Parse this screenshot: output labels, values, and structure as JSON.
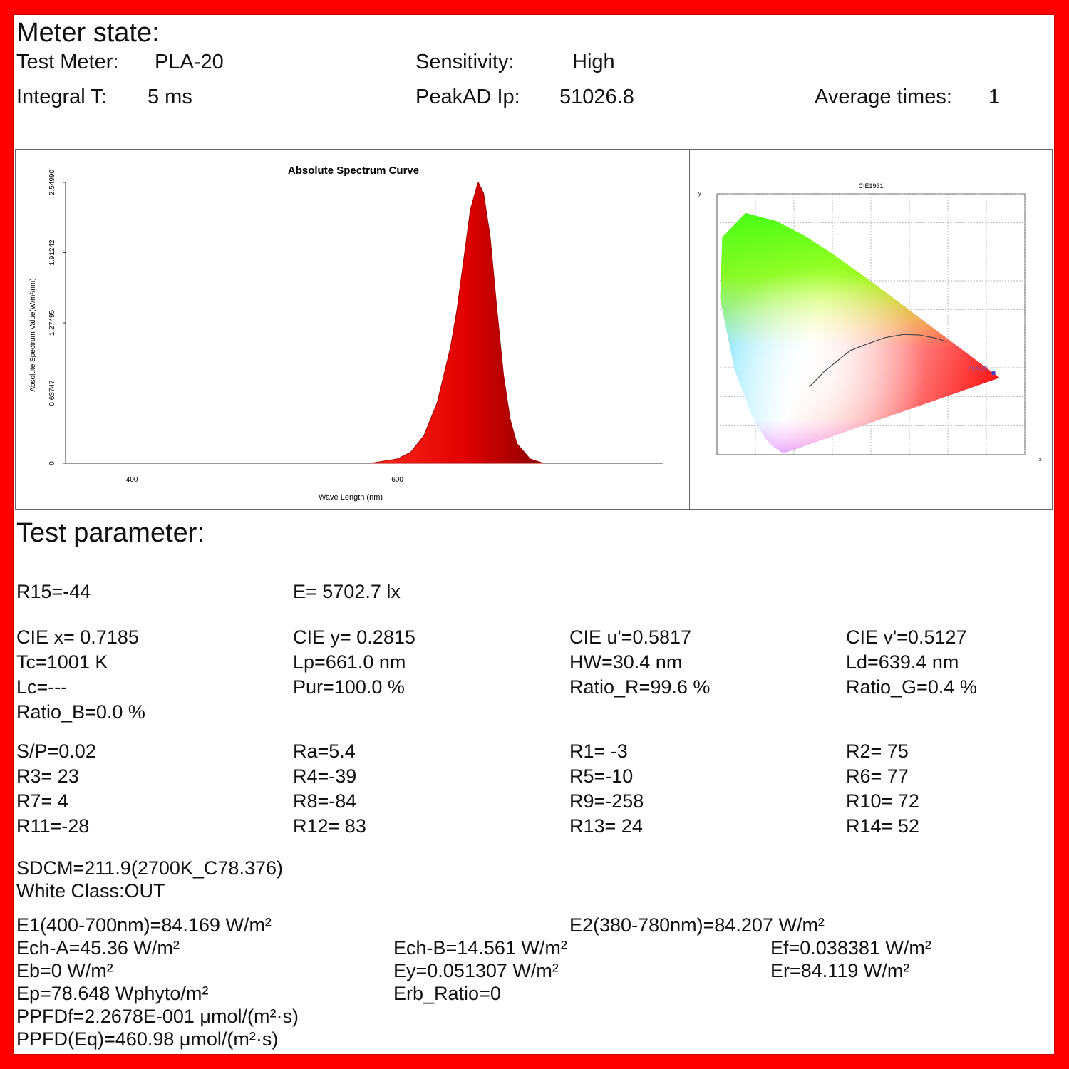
{
  "meter": {
    "title": "Meter state:",
    "test_meter_label": "Test Meter:",
    "test_meter": "PLA-20",
    "sensitivity_label": "Sensitivity:",
    "sensitivity": "High",
    "integral_label": "Integral T:",
    "integral": "5 ms",
    "peak_label": "PeakAD Ip:",
    "peak": "51026.8",
    "avg_label": "Average times:",
    "avg": "1"
  },
  "chart_data": [
    {
      "type": "area",
      "title": "Absolute Spectrum Curve",
      "xlabel": "Wave Length (nm)",
      "ylabel": "Absolute Spectrum Value(W/m²/nm)",
      "x_ticks": [
        "400",
        "600"
      ],
      "y_ticks": [
        "0",
        "0.63747",
        "1.27495",
        "1.91242",
        "2.54990"
      ],
      "xlim": [
        350,
        800
      ],
      "ylim": [
        0,
        2.5499
      ],
      "color": "#e00000",
      "series": [
        {
          "x": [
            580,
            600,
            610,
            620,
            630,
            640,
            645,
            650,
            655,
            660,
            661,
            665,
            670,
            675,
            680,
            685,
            690,
            700,
            710
          ],
          "values": [
            0,
            0.04,
            0.1,
            0.25,
            0.55,
            1.05,
            1.4,
            1.85,
            2.3,
            2.52,
            2.5499,
            2.45,
            2.05,
            1.4,
            0.8,
            0.4,
            0.18,
            0.04,
            0
          ]
        }
      ]
    },
    {
      "type": "scatter",
      "title": "CIE1931",
      "xlabel": "x",
      "ylabel": "y",
      "xlim": [
        0,
        0.8
      ],
      "ylim": [
        0,
        0.9
      ],
      "point": {
        "x": 0.7185,
        "y": 0.2815,
        "label": "PLA-20"
      }
    }
  ],
  "params": {
    "title": "Test parameter:",
    "r15": "R15=-44",
    "e": "E=  5702.7 lx",
    "row1": [
      "CIE x= 0.7185",
      "CIE y= 0.2815",
      "CIE u'=0.5817",
      "CIE v'=0.5127"
    ],
    "row2": [
      "Tc=1001 K",
      "Lp=661.0 nm",
      "HW=30.4 nm",
      "Ld=639.4 nm"
    ],
    "row3": [
      "Lc=---",
      "Pur=100.0 %",
      "Ratio_R=99.6 %",
      "Ratio_G=0.4 %"
    ],
    "row4": [
      "Ratio_B=0.0 %"
    ],
    "row5": [
      "S/P=0.02",
      "Ra=5.4",
      "R1= -3",
      "R2= 75"
    ],
    "row6": [
      "R3= 23",
      "R4=-39",
      "R5=-10",
      "R6= 77"
    ],
    "row7": [
      "R7=  4",
      "R8=-84",
      "R9=-258",
      "R10= 72"
    ],
    "row8": [
      "R11=-28",
      "R12= 83",
      "R13= 24",
      "R14= 52"
    ],
    "sdcm": "SDCM=211.9(2700K_C78.376)",
    "white_class": "White Class:OUT",
    "e1": "E1(400-700nm)=84.169 W/m²",
    "e2": "E2(380-780nm)=84.207 W/m²",
    "ech_a": "Ech-A=45.36 W/m²",
    "ech_b": "Ech-B=14.561 W/m²",
    "ef": "Ef=0.038381 W/m²",
    "eb": "Eb=0 W/m²",
    "ey": "Ey=0.051307 W/m²",
    "er": "Er=84.119 W/m²",
    "ep": "Ep=78.648 Wphyto/m²",
    "erb": "Erb_Ratio=0",
    "ppfdf": "PPFDf=2.2678E-001 μmol/(m²·s)",
    "ppfd": "PPFD(Eq)=460.98 μmol/(m²·s)"
  }
}
